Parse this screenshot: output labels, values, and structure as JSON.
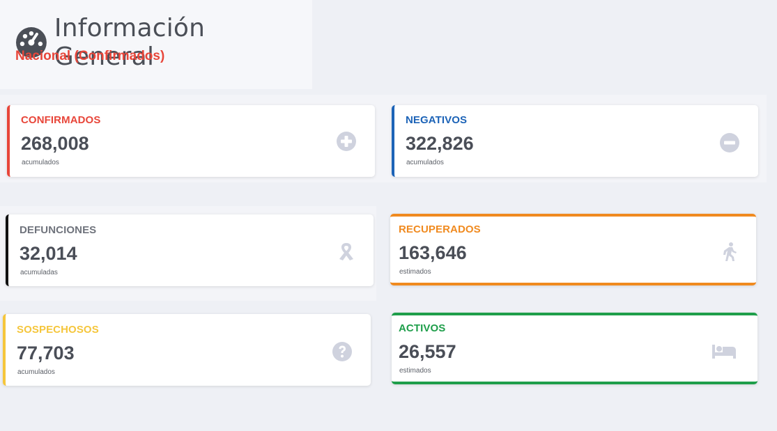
{
  "header": {
    "title": "Información General",
    "subtitle": "Nacional (Confirmados)"
  },
  "cards": [
    {
      "label": "CONFIRMADOS",
      "value": "268,008",
      "caption": "acumulados",
      "color": "#e8463a",
      "icon": "plus-circle-icon"
    },
    {
      "label": "NEGATIVOS",
      "value": "322,826",
      "caption": "acumulados",
      "color": "#1c63b7",
      "icon": "minus-circle-icon"
    },
    {
      "label": "DEFUNCIONES",
      "value": "32,014",
      "caption": "acumuladas",
      "color": "#111111",
      "label_color": "#6f737c",
      "icon": "ribbon-icon"
    },
    {
      "label": "RECUPERADOS",
      "value": "163,646",
      "caption": "estimados",
      "color": "#f08a1f",
      "icon": "walking-person-icon"
    },
    {
      "label": "SOSPECHOSOS",
      "value": "77,703",
      "caption": "acumulados",
      "color": "#f5c63c",
      "icon": "question-circle-icon"
    },
    {
      "label": "ACTIVOS",
      "value": "26,557",
      "caption": "estimados",
      "color": "#1e9e4a",
      "icon": "bed-icon"
    }
  ],
  "colors": {
    "icon": "#cfd2de",
    "background": "#eef0f5"
  }
}
